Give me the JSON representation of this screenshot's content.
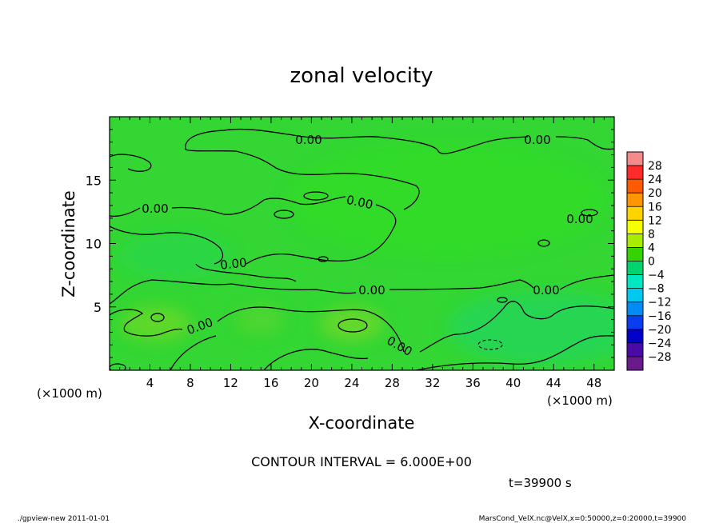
{
  "chart_data": {
    "type": "heatmap",
    "title": "zonal velocity",
    "xlabel": "X-coordinate",
    "ylabel": "Z-coordinate",
    "x_unit": "(×1000 m)",
    "y_unit": "(×1000 m)",
    "xlim": [
      0,
      50
    ],
    "ylim": [
      0,
      20
    ],
    "x_ticks": [
      4,
      8,
      12,
      16,
      20,
      24,
      28,
      32,
      36,
      40,
      44,
      48
    ],
    "y_ticks": [
      5,
      10,
      15
    ],
    "colorbar": {
      "labels": [
        "28",
        "24",
        "20",
        "16",
        "12",
        "8",
        "4",
        "0",
        "−4",
        "−8",
        "−12",
        "−16",
        "−20",
        "−24",
        "−28"
      ],
      "colors": [
        "#f58a8a",
        "#ff2a2a",
        "#ff5a00",
        "#ff9500",
        "#ffd200",
        "#f4ff00",
        "#a8ec00",
        "#35d400",
        "#00d46e",
        "#00e8c0",
        "#00c8ee",
        "#008cf4",
        "#0a3cf0",
        "#0000c8",
        "#4a0aa8",
        "#6a1a8a"
      ]
    },
    "field_colors": {
      "base": "#33d633",
      "upper_tint": "#2ee01e",
      "lower_tint": "#1ed668",
      "positive_patch": "#6ed82a"
    },
    "contour_interval": "CONTOUR INTERVAL = 6.000E+00",
    "contour_labels": [
      "0.00",
      "0.00",
      "0.00",
      "0.00",
      "0.00",
      "0.00",
      "0.00",
      "0.00",
      "0.00",
      "0.00"
    ],
    "time_label": "t=39900 s"
  },
  "footer": {
    "left": "./gpview-new  2011-01-01",
    "right": "MarsCond_VelX.nc@VelX,x=0:50000,z=0:20000,t=39900"
  }
}
